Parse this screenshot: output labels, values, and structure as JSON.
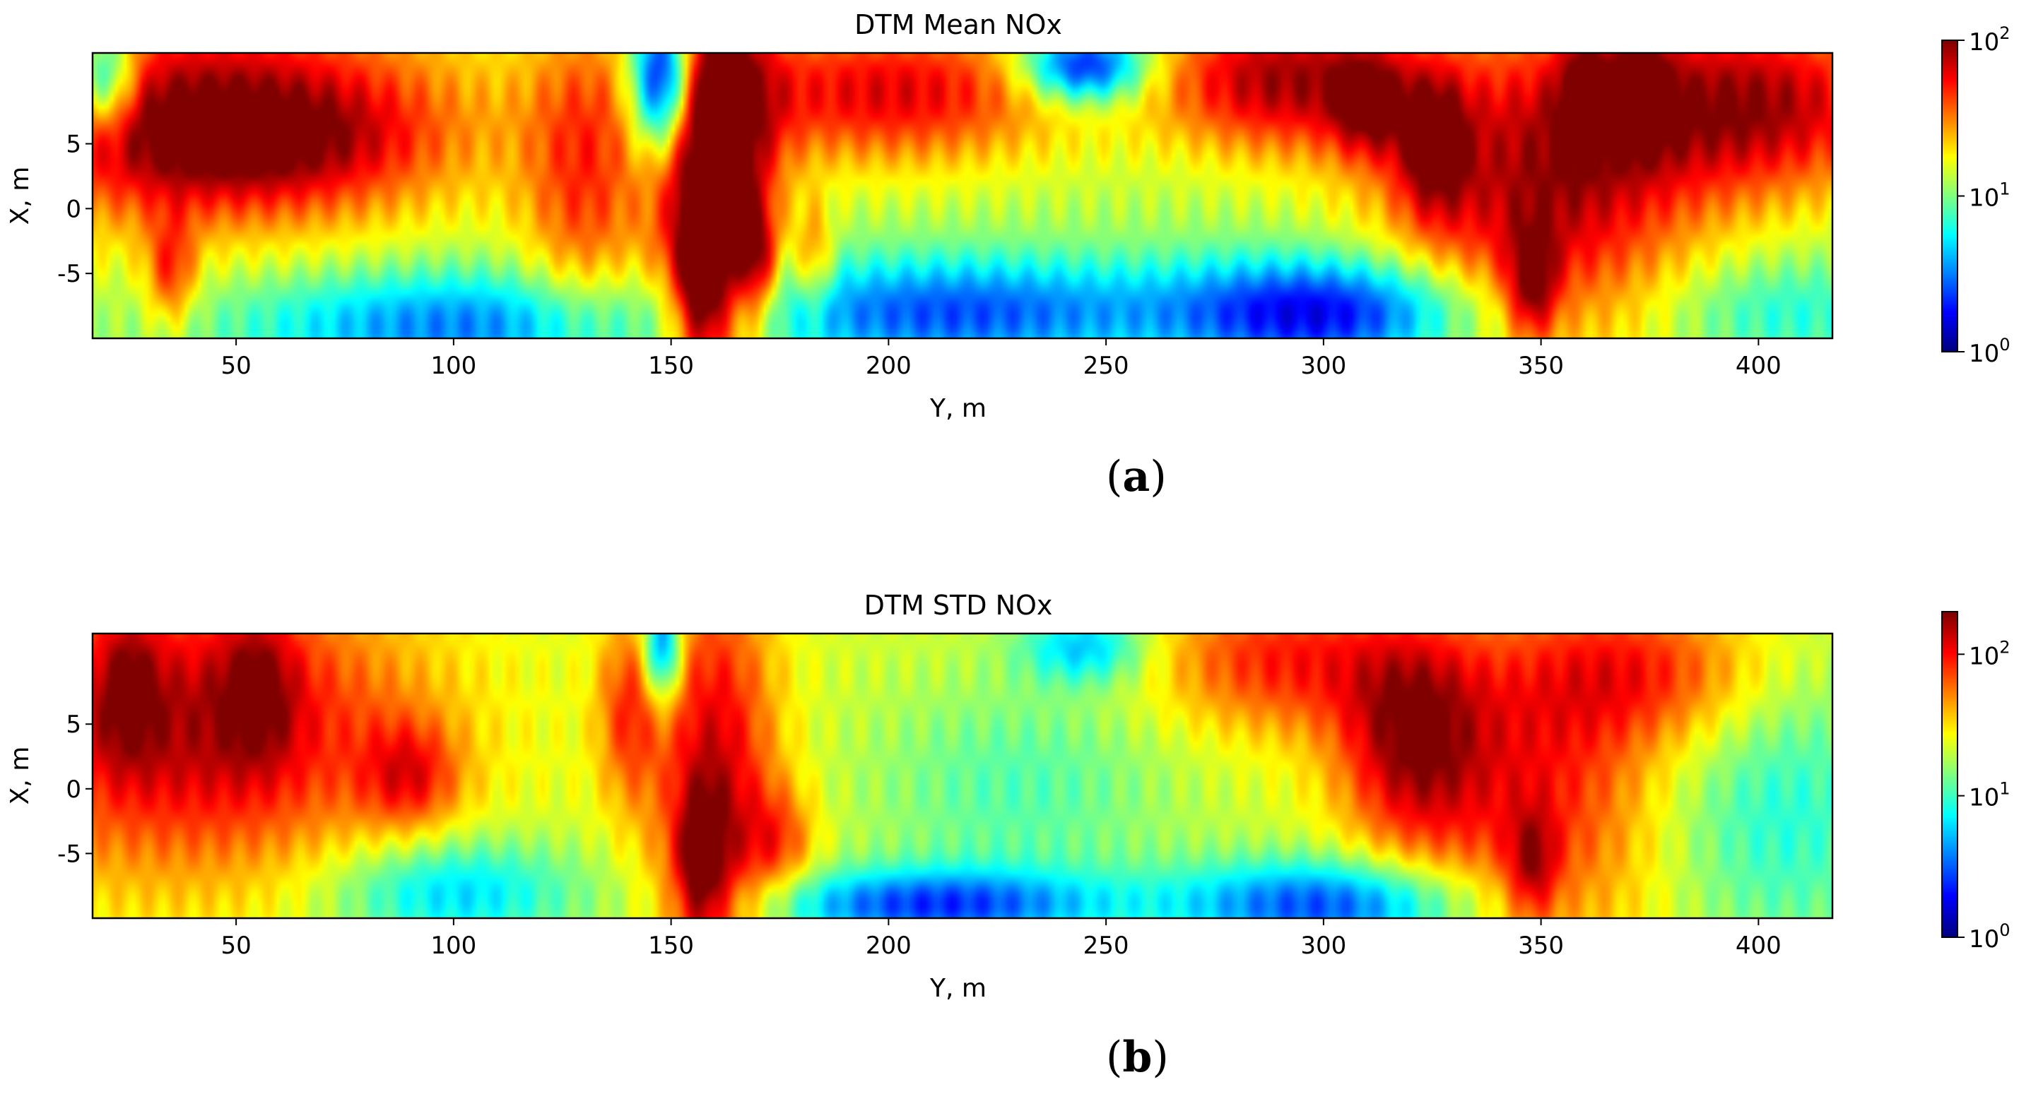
{
  "chart_data": [
    {
      "type": "heatmap",
      "title": "DTM Mean NOx",
      "xlabel": "Y, m",
      "ylabel": "X, m",
      "xlim": [
        17,
        417
      ],
      "ylim": [
        -10,
        12
      ],
      "x_ticks": [
        "50",
        "100",
        "150",
        "200",
        "250",
        "300",
        "350",
        "400"
      ],
      "x_tick_values": [
        50,
        100,
        150,
        200,
        250,
        300,
        350,
        400
      ],
      "y_ticks": [
        "5",
        "0",
        "-5"
      ],
      "y_tick_values": [
        5,
        0,
        -5
      ],
      "colorbar": {
        "scale": "log",
        "min": 1,
        "max": 100,
        "ticks": [
          "10",
          "10",
          "10"
        ],
        "tick_exponents": [
          "0",
          "1",
          "2"
        ],
        "tick_values": [
          1,
          10,
          100
        ],
        "colormap": "jet"
      },
      "caption_label": "a",
      "base_log": 1.1,
      "blobs": [
        {
          "y": 20,
          "x": 10,
          "sy": 5,
          "sx": 3,
          "a": -0.8
        },
        {
          "y": 45,
          "x": 7,
          "sy": 40,
          "sx": 6,
          "a": 0.9
        },
        {
          "y": 55,
          "x": 5,
          "sy": 25,
          "sx": 3,
          "a": 0.3
        },
        {
          "y": 35,
          "x": -5,
          "sy": 4,
          "sx": 3,
          "a": 0.5
        },
        {
          "y": 100,
          "x": -9,
          "sy": 35,
          "sx": 3,
          "a": -0.6
        },
        {
          "y": 130,
          "x": 2,
          "sy": 10,
          "sx": 9,
          "a": 0.5
        },
        {
          "y": 148,
          "x": 10,
          "sy": 5,
          "sx": 4,
          "a": -1.3
        },
        {
          "y": 160,
          "x": 2,
          "sy": 9,
          "sx": 11,
          "a": 1.2
        },
        {
          "y": 157,
          "x": -6,
          "sy": 4,
          "sx": 4,
          "a": 0.6
        },
        {
          "y": 170,
          "x": -4,
          "sy": 3,
          "sx": 3,
          "a": 0.5
        },
        {
          "y": 183,
          "x": -4,
          "sy": 3,
          "sx": 3,
          "a": 0.4
        },
        {
          "y": 200,
          "x": 9,
          "sy": 30,
          "sx": 4,
          "a": 0.7
        },
        {
          "y": 215,
          "x": -8,
          "sy": 35,
          "sx": 3,
          "a": -0.7
        },
        {
          "y": 245,
          "x": 11,
          "sy": 10,
          "sx": 2,
          "a": -1.0
        },
        {
          "y": 300,
          "x": -8,
          "sy": 25,
          "sx": 3,
          "a": -0.9
        },
        {
          "y": 290,
          "x": 10,
          "sy": 20,
          "sx": 4,
          "a": 0.8
        },
        {
          "y": 310,
          "x": 8,
          "sy": 6,
          "sx": 3,
          "a": 0.5
        },
        {
          "y": 325,
          "x": 5,
          "sy": 6,
          "sx": 4,
          "a": 0.6
        },
        {
          "y": 350,
          "x": 2,
          "sy": 25,
          "sx": 9,
          "a": 0.8
        },
        {
          "y": 348,
          "x": -6,
          "sy": 4,
          "sx": 3,
          "a": 0.6
        },
        {
          "y": 360,
          "x": 9,
          "sy": 4,
          "sx": 3,
          "a": 0.5
        },
        {
          "y": 373,
          "x": 9,
          "sy": 5,
          "sx": 3,
          "a": 0.5
        },
        {
          "y": 400,
          "x": 8,
          "sy": 25,
          "sx": 5,
          "a": 0.8
        },
        {
          "y": 405,
          "x": -8,
          "sy": 20,
          "sx": 3,
          "a": -0.3
        }
      ]
    },
    {
      "type": "heatmap",
      "title": "DTM STD NOx",
      "xlabel": "Y, m",
      "ylabel": "X, m",
      "xlim": [
        17,
        417
      ],
      "ylim": [
        -10,
        12
      ],
      "x_ticks": [
        "50",
        "100",
        "150",
        "200",
        "250",
        "300",
        "350",
        "400"
      ],
      "x_tick_values": [
        50,
        100,
        150,
        200,
        250,
        300,
        350,
        400
      ],
      "y_ticks": [
        "5",
        "0",
        "-5"
      ],
      "y_tick_values": [
        5,
        0,
        -5
      ],
      "colorbar": {
        "scale": "log",
        "min": 1,
        "max": 200,
        "ticks": [
          "10",
          "10",
          "10"
        ],
        "tick_exponents": [
          "0",
          "1",
          "2"
        ],
        "tick_values": [
          1,
          10,
          100
        ],
        "colormap": "jet"
      },
      "caption_label": "b",
      "base_log": 1.35,
      "blobs": [
        {
          "y": 40,
          "x": 5,
          "sy": 35,
          "sx": 8,
          "a": 0.85
        },
        {
          "y": 55,
          "x": 8,
          "sy": 6,
          "sx": 4,
          "a": 0.4
        },
        {
          "y": 25,
          "x": 8,
          "sy": 5,
          "sx": 4,
          "a": 0.4
        },
        {
          "y": 90,
          "x": 1,
          "sy": 8,
          "sx": 3,
          "a": 0.5
        },
        {
          "y": 100,
          "x": -8,
          "sy": 20,
          "sx": 3,
          "a": -0.6
        },
        {
          "y": 148,
          "x": 11,
          "sy": 3,
          "sx": 3,
          "a": -1.0
        },
        {
          "y": 140,
          "x": 6,
          "sy": 5,
          "sx": 5,
          "a": 0.5
        },
        {
          "y": 160,
          "x": 0,
          "sy": 10,
          "sx": 12,
          "a": 0.8
        },
        {
          "y": 157,
          "x": -6,
          "sy": 4,
          "sx": 4,
          "a": 0.6
        },
        {
          "y": 175,
          "x": -4,
          "sy": 6,
          "sx": 3,
          "a": 0.4
        },
        {
          "y": 210,
          "x": -9,
          "sy": 28,
          "sx": 2,
          "a": -0.9
        },
        {
          "y": 245,
          "x": 11,
          "sy": 10,
          "sx": 2,
          "a": -0.6
        },
        {
          "y": 300,
          "x": -9,
          "sy": 25,
          "sx": 2.5,
          "a": -0.9
        },
        {
          "y": 230,
          "x": 0,
          "sy": 25,
          "sx": 6,
          "a": -0.3
        },
        {
          "y": 290,
          "x": 10,
          "sy": 20,
          "sx": 4,
          "a": 0.6
        },
        {
          "y": 320,
          "x": 4,
          "sy": 12,
          "sx": 6,
          "a": 0.8
        },
        {
          "y": 350,
          "x": 0,
          "sy": 20,
          "sx": 10,
          "a": 0.6
        },
        {
          "y": 348,
          "x": -6,
          "sy": 4,
          "sx": 3,
          "a": 0.5
        },
        {
          "y": 375,
          "x": 9,
          "sy": 20,
          "sx": 4,
          "a": 0.5
        },
        {
          "y": 405,
          "x": -2,
          "sy": 20,
          "sx": 8,
          "a": -0.4
        }
      ]
    }
  ]
}
